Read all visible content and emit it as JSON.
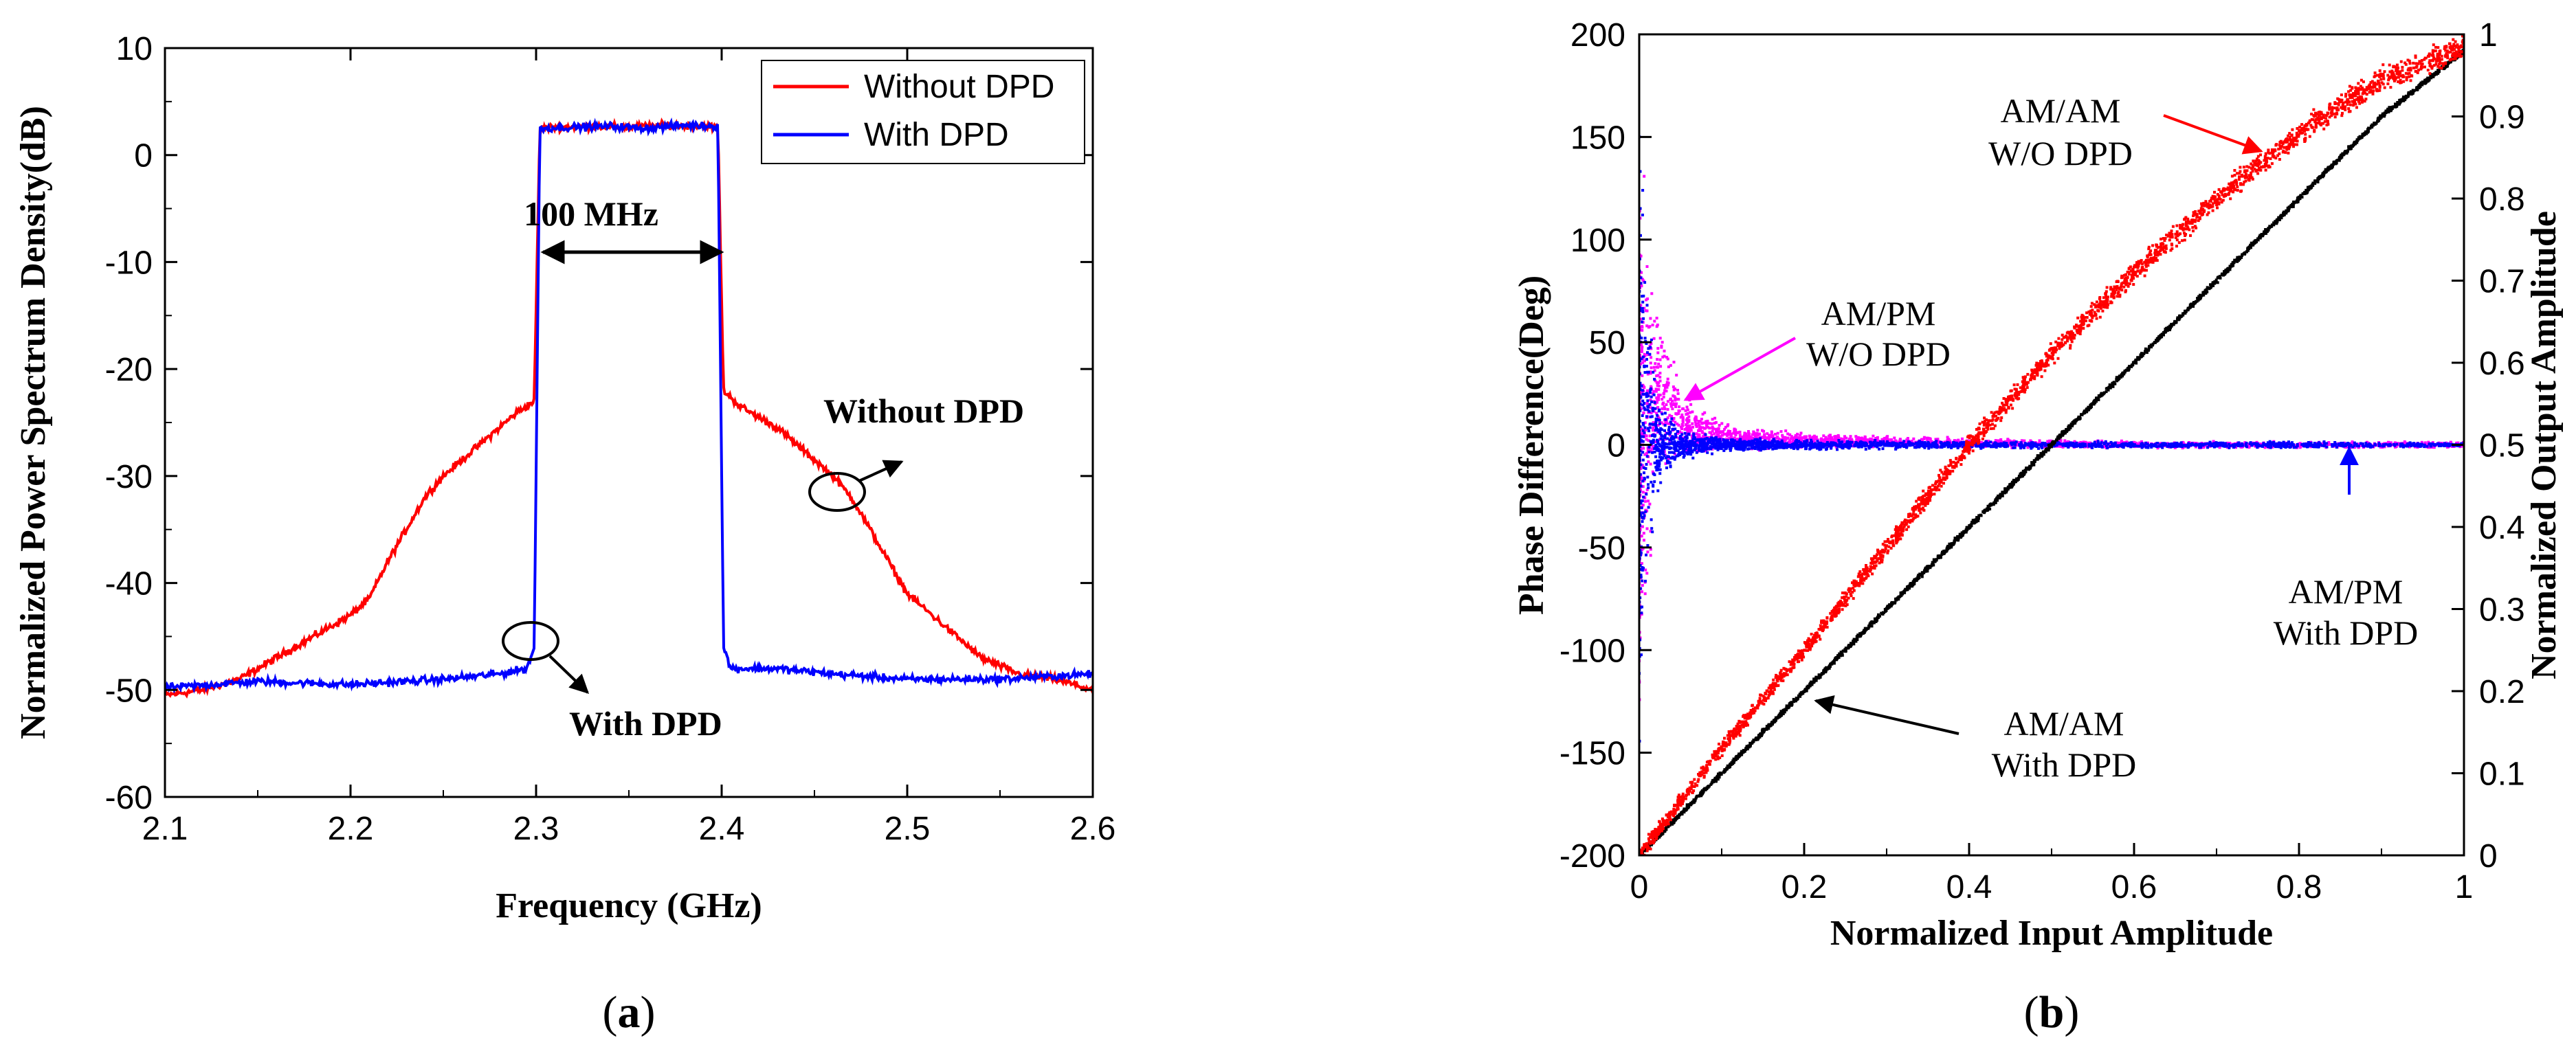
{
  "chart_data": [
    {
      "panel": "a",
      "type": "line",
      "panel_label_prefix": "(",
      "panel_label_letter": "a",
      "panel_label_suffix": ")",
      "xlabel": "Frequency (GHz)",
      "ylabel": "Normalized Power Spectrum Density(dB)",
      "xlim": [
        2.1,
        2.6
      ],
      "ylim": [
        -60,
        10
      ],
      "xticks": [
        2.1,
        2.2,
        2.3,
        2.4,
        2.5,
        2.6
      ],
      "xtick_labels": [
        "2.1",
        "2.2",
        "2.3",
        "2.4",
        "2.5",
        "2.6"
      ],
      "yticks": [
        10,
        0,
        -10,
        -20,
        -30,
        -40,
        -50,
        -60
      ],
      "ytick_labels": [
        "10",
        "0",
        "-10",
        "-20",
        "-30",
        "-40",
        "-50",
        "-60"
      ],
      "grid": false,
      "legend_position": "top-right",
      "series": [
        {
          "name": "Without DPD",
          "color": "#ff0000",
          "x": [
            2.1,
            2.12,
            2.14,
            2.16,
            2.18,
            2.2,
            2.21,
            2.22,
            2.23,
            2.24,
            2.25,
            2.26,
            2.27,
            2.28,
            2.29,
            2.299,
            2.302,
            2.31,
            2.33,
            2.35,
            2.37,
            2.39,
            2.398,
            2.401,
            2.41,
            2.42,
            2.43,
            2.44,
            2.45,
            2.46,
            2.47,
            2.48,
            2.49,
            2.5,
            2.52,
            2.54,
            2.56,
            2.58,
            2.6
          ],
          "y": [
            -50.5,
            -50,
            -49,
            -47,
            -45,
            -43,
            -41.5,
            -38,
            -35,
            -32,
            -30,
            -28.5,
            -27,
            -25.5,
            -24,
            -23,
            2.5,
            2.6,
            2.7,
            2.6,
            2.8,
            2.7,
            2.6,
            -22,
            -23.5,
            -24.5,
            -25.5,
            -27,
            -28.5,
            -30,
            -32,
            -35,
            -38,
            -41,
            -44,
            -47,
            -48.5,
            -49,
            -50
          ]
        },
        {
          "name": "With DPD",
          "color": "#0000ff",
          "x": [
            2.1,
            2.15,
            2.2,
            2.25,
            2.28,
            2.295,
            2.299,
            2.302,
            2.32,
            2.34,
            2.36,
            2.38,
            2.398,
            2.401,
            2.405,
            2.43,
            2.46,
            2.5,
            2.55,
            2.6
          ],
          "y": [
            -49.8,
            -49.2,
            -49.5,
            -49,
            -48.5,
            -48,
            -46,
            2.5,
            2.6,
            2.7,
            2.5,
            2.8,
            2.7,
            -46,
            -48,
            -48,
            -48.5,
            -49,
            -49,
            -48.5
          ]
        }
      ],
      "annotations": [
        {
          "text": "100 MHz",
          "bold": true
        },
        {
          "text": "Without DPD",
          "bold": true
        },
        {
          "text": "With DPD",
          "bold": true
        }
      ]
    },
    {
      "panel": "b",
      "type": "scatter",
      "panel_label_prefix": "(",
      "panel_label_letter": "b",
      "panel_label_suffix": ")",
      "xlabel": "Normalized Input Amplitude",
      "ylabel_left": "Phase Difference(Deg)",
      "ylabel_right": "Normalized Output Amplitude",
      "xlim": [
        0,
        1
      ],
      "ylim_left": [
        -200,
        200
      ],
      "ylim_right": [
        0,
        1
      ],
      "xticks": [
        0,
        0.2,
        0.4,
        0.6,
        0.8,
        1
      ],
      "xtick_labels": [
        "0",
        "0.2",
        "0.4",
        "0.6",
        "0.8",
        "1"
      ],
      "yticks_left": [
        200,
        150,
        100,
        50,
        0,
        -50,
        -100,
        -150,
        -200
      ],
      "ytick_labels_left": [
        "200",
        "150",
        "100",
        "50",
        "0",
        "-50",
        "-100",
        "-150",
        "-200"
      ],
      "yticks_right": [
        1,
        0.9,
        0.8,
        0.7,
        0.6,
        0.5,
        0.4,
        0.3,
        0.2,
        0.1,
        0
      ],
      "ytick_labels_right": [
        "1",
        "0.9",
        "0.8",
        "0.7",
        "0.6",
        "0.5",
        "0.4",
        "0.3",
        "0.2",
        "0.1",
        "0"
      ],
      "grid": false,
      "series": [
        {
          "name": "AM/AM W/O DPD",
          "color": "#ff0000",
          "axis": "right",
          "x": [
            0,
            0.1,
            0.2,
            0.3,
            0.4,
            0.5,
            0.6,
            0.7,
            0.8,
            0.9,
            1.0
          ],
          "y": [
            0,
            0.13,
            0.25,
            0.375,
            0.5,
            0.61,
            0.71,
            0.8,
            0.88,
            0.945,
            0.985
          ]
        },
        {
          "name": "AM/AM With DPD",
          "color": "#000000",
          "axis": "right",
          "x": [
            0,
            0.1,
            0.2,
            0.3,
            0.4,
            0.5,
            0.6,
            0.7,
            0.8,
            0.9,
            1.0
          ],
          "y": [
            0,
            0.1,
            0.2,
            0.3,
            0.4,
            0.5,
            0.6,
            0.7,
            0.8,
            0.9,
            0.98
          ]
        },
        {
          "name": "AM/PM W/O DPD",
          "color": "#ff00ff",
          "axis": "left",
          "x": [
            0,
            0.02,
            0.05,
            0.1,
            0.2,
            0.4,
            0.6,
            0.8,
            1.0
          ],
          "y": [
            0,
            25,
            10,
            4,
            2,
            1,
            0,
            0,
            0
          ],
          "spread": [
            170,
            60,
            20,
            8,
            4,
            3,
            2,
            2,
            2
          ]
        },
        {
          "name": "AM/PM With DPD",
          "color": "#0000ff",
          "axis": "left",
          "x": [
            0,
            0.02,
            0.05,
            0.1,
            0.2,
            0.4,
            0.6,
            0.8,
            1.0
          ],
          "y": [
            0,
            0,
            0,
            0,
            0,
            0,
            0,
            0,
            0
          ],
          "spread": [
            175,
            30,
            10,
            4,
            3,
            2,
            2,
            2,
            1
          ]
        }
      ],
      "annotations": [
        {
          "text_line1": "AM/AM",
          "text_line2": "W/O DPD",
          "color": "#ff0000"
        },
        {
          "text_line1": "AM/PM",
          "text_line2": "W/O DPD",
          "color": "#ff00ff"
        },
        {
          "text_line1": "AM/PM",
          "text_line2": "With DPD",
          "color": "#0000ff"
        },
        {
          "text_line1": "AM/AM",
          "text_line2": "With DPD",
          "color": "#000000"
        }
      ]
    }
  ]
}
